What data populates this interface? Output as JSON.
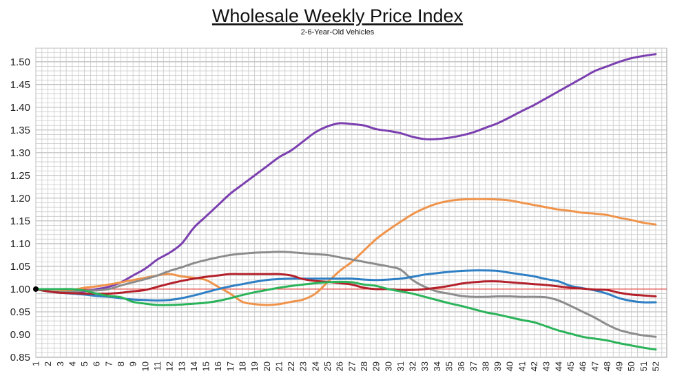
{
  "chart_data": {
    "type": "line",
    "title": "Wholesale Weekly Price Index",
    "subtitle": "2-6-Year-Old Vehicles",
    "xlabel": "",
    "ylabel": "",
    "ylim": [
      0.85,
      1.53
    ],
    "xlim": [
      1,
      52
    ],
    "grid": true,
    "legend": "none",
    "yticks": [
      "0.85",
      "0.90",
      "0.95",
      "1.00",
      "1.05",
      "1.10",
      "1.15",
      "1.20",
      "1.25",
      "1.30",
      "1.35",
      "1.40",
      "1.45",
      "1.50"
    ],
    "x": [
      1,
      2,
      3,
      4,
      5,
      6,
      7,
      8,
      9,
      10,
      11,
      12,
      13,
      14,
      15,
      16,
      17,
      18,
      19,
      20,
      21,
      22,
      23,
      24,
      25,
      26,
      27,
      28,
      29,
      30,
      31,
      32,
      33,
      34,
      35,
      36,
      37,
      38,
      39,
      40,
      41,
      42,
      43,
      44,
      45,
      46,
      47,
      48,
      49,
      50,
      51,
      52
    ],
    "reference_line": {
      "value": 1.0,
      "color": "#e0403a"
    },
    "start_marker": {
      "x": 1,
      "y": 1.0
    },
    "series": [
      {
        "name": "purple",
        "color": "#7b3fb0",
        "values": [
          1.0,
          0.995,
          0.993,
          0.993,
          0.995,
          1.0,
          1.005,
          1.015,
          1.03,
          1.045,
          1.065,
          1.08,
          1.1,
          1.135,
          1.16,
          1.185,
          1.21,
          1.23,
          1.25,
          1.27,
          1.29,
          1.305,
          1.325,
          1.345,
          1.358,
          1.365,
          1.363,
          1.36,
          1.352,
          1.348,
          1.343,
          1.335,
          1.33,
          1.33,
          1.333,
          1.338,
          1.345,
          1.355,
          1.365,
          1.378,
          1.392,
          1.405,
          1.42,
          1.435,
          1.45,
          1.465,
          1.48,
          1.49,
          1.5,
          1.508,
          1.513,
          1.517
        ]
      },
      {
        "name": "orange",
        "color": "#f0934a",
        "values": [
          1.0,
          0.995,
          0.995,
          0.998,
          1.003,
          1.006,
          1.01,
          1.015,
          1.02,
          1.025,
          1.03,
          1.033,
          1.028,
          1.025,
          1.02,
          1.005,
          0.99,
          0.972,
          0.967,
          0.965,
          0.967,
          0.972,
          0.977,
          0.99,
          1.015,
          1.04,
          1.06,
          1.085,
          1.11,
          1.13,
          1.148,
          1.165,
          1.178,
          1.188,
          1.194,
          1.197,
          1.198,
          1.198,
          1.197,
          1.195,
          1.19,
          1.185,
          1.18,
          1.175,
          1.172,
          1.168,
          1.166,
          1.163,
          1.157,
          1.152,
          1.146,
          1.142
        ]
      },
      {
        "name": "gray",
        "color": "#8c8c8c",
        "values": [
          1.0,
          0.995,
          0.993,
          0.994,
          0.997,
          0.997,
          1.0,
          1.008,
          1.015,
          1.022,
          1.03,
          1.04,
          1.048,
          1.057,
          1.064,
          1.07,
          1.075,
          1.078,
          1.08,
          1.081,
          1.082,
          1.081,
          1.079,
          1.077,
          1.075,
          1.07,
          1.065,
          1.06,
          1.055,
          1.05,
          1.043,
          1.02,
          1.005,
          0.995,
          0.99,
          0.985,
          0.983,
          0.983,
          0.984,
          0.984,
          0.983,
          0.983,
          0.982,
          0.975,
          0.963,
          0.95,
          0.937,
          0.922,
          0.91,
          0.903,
          0.898,
          0.895
        ]
      },
      {
        "name": "blue",
        "color": "#2e7fc4",
        "values": [
          1.0,
          0.995,
          0.992,
          0.99,
          0.988,
          0.985,
          0.983,
          0.98,
          0.977,
          0.976,
          0.975,
          0.976,
          0.98,
          0.986,
          0.993,
          1.0,
          1.006,
          1.011,
          1.016,
          1.02,
          1.022,
          1.023,
          1.023,
          1.023,
          1.023,
          1.023,
          1.023,
          1.021,
          1.02,
          1.021,
          1.023,
          1.027,
          1.032,
          1.035,
          1.038,
          1.04,
          1.041,
          1.041,
          1.04,
          1.036,
          1.032,
          1.028,
          1.022,
          1.017,
          1.007,
          1.002,
          0.997,
          0.99,
          0.98,
          0.974,
          0.971,
          0.971
        ]
      },
      {
        "name": "red",
        "color": "#b3202a",
        "values": [
          1.0,
          0.995,
          0.992,
          0.991,
          0.99,
          0.99,
          0.99,
          0.992,
          0.995,
          0.998,
          1.005,
          1.012,
          1.018,
          1.023,
          1.027,
          1.03,
          1.033,
          1.033,
          1.033,
          1.033,
          1.033,
          1.03,
          1.022,
          1.018,
          1.016,
          1.013,
          1.01,
          1.003,
          1.0,
          1.0,
          0.998,
          0.998,
          1.0,
          1.003,
          1.007,
          1.012,
          1.015,
          1.017,
          1.017,
          1.015,
          1.013,
          1.011,
          1.009,
          1.006,
          1.003,
          1.001,
          0.999,
          0.998,
          0.992,
          0.988,
          0.986,
          0.984
        ]
      },
      {
        "name": "green",
        "color": "#2bb35a",
        "values": [
          1.0,
          1.0,
          1.0,
          1.0,
          0.997,
          0.99,
          0.985,
          0.982,
          0.972,
          0.968,
          0.965,
          0.965,
          0.966,
          0.968,
          0.97,
          0.974,
          0.98,
          0.987,
          0.993,
          0.998,
          1.003,
          1.007,
          1.01,
          1.013,
          1.015,
          1.016,
          1.015,
          1.01,
          1.007,
          1.0,
          0.995,
          0.99,
          0.983,
          0.976,
          0.969,
          0.963,
          0.956,
          0.949,
          0.944,
          0.938,
          0.932,
          0.927,
          0.918,
          0.909,
          0.902,
          0.895,
          0.891,
          0.887,
          0.881,
          0.876,
          0.871,
          0.867
        ]
      }
    ]
  }
}
